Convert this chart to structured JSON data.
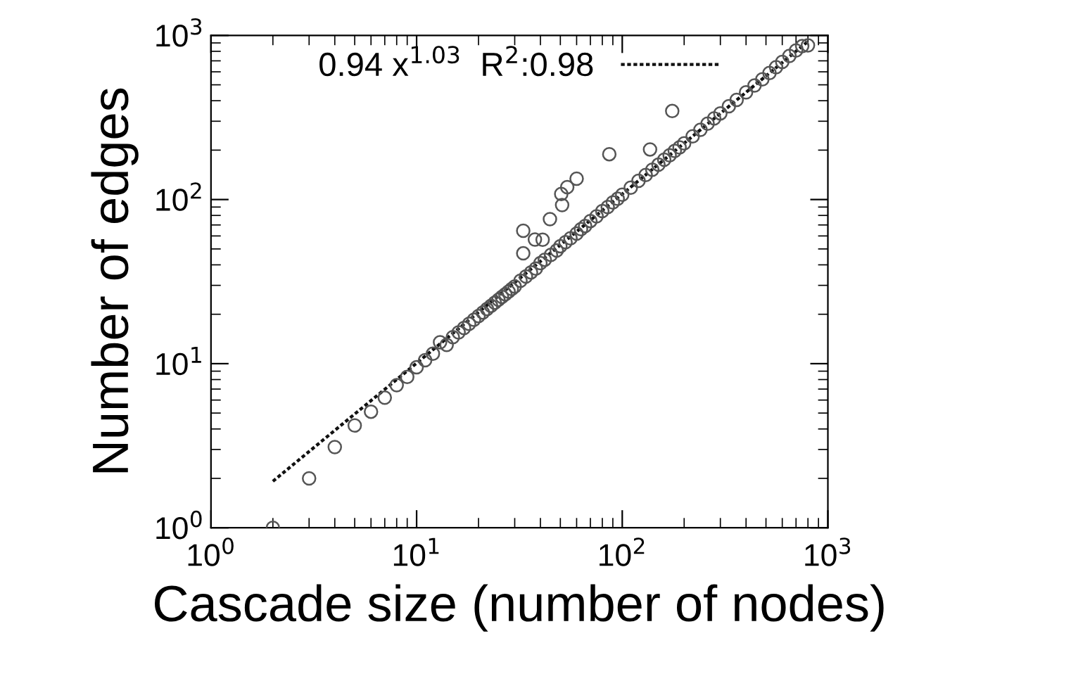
{
  "chart_data": {
    "type": "scatter",
    "xlabel": "Cascade size (number of nodes)",
    "ylabel": "Number of edges",
    "log": "xy",
    "xlim": [
      1,
      1000
    ],
    "ylim": [
      1,
      1000
    ],
    "xticks": [
      {
        "value": 1,
        "label": "10$^{0}$"
      },
      {
        "value": 10,
        "label": "10$^{1}$"
      },
      {
        "value": 100,
        "label": "10$^{2}$"
      },
      {
        "value": 1000,
        "label": "10$^{3}$"
      }
    ],
    "yticks": [
      {
        "value": 1,
        "label": "10$^{0}$"
      },
      {
        "value": 10,
        "label": "10$^{1}$"
      },
      {
        "value": 100,
        "label": "10$^{2}$"
      },
      {
        "value": 1000,
        "label": "10$^{3}$"
      }
    ],
    "grid": false,
    "legend": "top",
    "series": [
      {
        "marker": "circle",
        "color": "#555555",
        "x": [
          2,
          3,
          4,
          5,
          6,
          7,
          8,
          9,
          10,
          11,
          12,
          13,
          14,
          15,
          16,
          17,
          18,
          19,
          20,
          21,
          22,
          23,
          24,
          25,
          26,
          27,
          28,
          29,
          30,
          32,
          34,
          36,
          38,
          40,
          42,
          45,
          48,
          50,
          53,
          56,
          60,
          63,
          66,
          70,
          75,
          80,
          85,
          90,
          95,
          100,
          110,
          120,
          130,
          140,
          150,
          160,
          170,
          180,
          190,
          200,
          220,
          240,
          260,
          280,
          300,
          330,
          360,
          400,
          440,
          480,
          520,
          560,
          600,
          650,
          700,
          750,
          800,
          33,
          33,
          37.6,
          41,
          44.5,
          51,
          50.5,
          54,
          60,
          86.5,
          136.5,
          175
        ],
        "values": [
          1,
          2,
          3.1,
          4.2,
          5.1,
          6.2,
          7.4,
          8.3,
          9.5,
          10.5,
          11.5,
          13.5,
          13,
          14.5,
          15.5,
          16.5,
          17.5,
          18.5,
          19.5,
          20.5,
          21.5,
          22.5,
          23.5,
          24.5,
          25.5,
          26.5,
          27.5,
          28.5,
          29.5,
          32,
          34,
          36,
          38,
          41,
          43,
          46,
          49,
          52,
          55,
          58,
          62,
          66,
          69,
          74,
          79,
          85,
          90,
          96,
          101,
          107,
          118,
          130,
          141,
          152,
          163,
          175,
          186,
          198,
          208,
          220,
          243,
          266,
          290,
          312,
          335,
          370,
          405,
          450,
          495,
          540,
          590,
          640,
          690,
          750,
          810,
          860,
          870,
          64.6,
          47,
          57,
          56.9,
          76,
          92.6,
          108,
          119,
          134,
          189,
          202,
          346
        ]
      },
      {
        "type": "line",
        "marker": "none",
        "name": "0.94 x$^{1.03}$  R$^{2}$:0.98",
        "color": "#111111",
        "line_style": "dotted",
        "x": [
          2,
          800
        ],
        "values": [
          1.92,
          919
        ]
      }
    ]
  }
}
